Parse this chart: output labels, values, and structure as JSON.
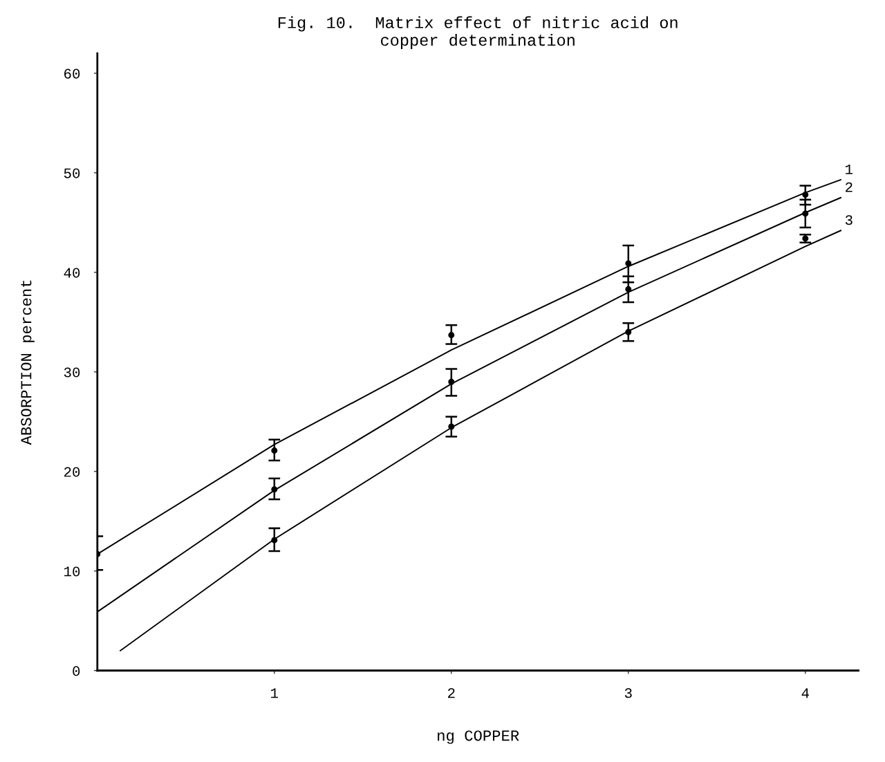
{
  "chart_data": {
    "type": "line",
    "title": "Fig. 10.  Matrix effect of nitric acid on\ncopper determination",
    "xlabel": "ng COPPER",
    "ylabel": "ABSORPTION percent",
    "xlim": [
      0,
      4.3
    ],
    "ylim": [
      0,
      62
    ],
    "xticks": [
      1,
      2,
      3,
      4
    ],
    "yticks": [
      0,
      10,
      20,
      30,
      40,
      50,
      60
    ],
    "grid": false,
    "legend": "right",
    "line_style": "solid",
    "series": [
      {
        "name": "1",
        "marker": "none",
        "color": "#000000",
        "x": [
          0,
          1,
          2,
          3,
          4,
          4.2
        ],
        "values": [
          11.7,
          22.7,
          32.2,
          40.6,
          48.0,
          49.3
        ]
      },
      {
        "name": "2",
        "marker": "none",
        "color": "#000000",
        "x": [
          0,
          1,
          2,
          3,
          4,
          4.2
        ],
        "values": [
          5.9,
          18.1,
          28.8,
          38.0,
          46.0,
          47.5
        ]
      },
      {
        "name": "3",
        "marker": "none",
        "color": "#000000",
        "x": [
          0.13,
          1,
          2,
          3,
          4,
          4.2
        ],
        "values": [
          2.0,
          13.2,
          24.4,
          34.1,
          42.6,
          44.2
        ]
      },
      {
        "type": "scatter",
        "marker": "circle",
        "color": "#000000",
        "x": [
          0,
          1,
          2,
          3,
          4
        ],
        "values": [
          11.7,
          22.1,
          33.7,
          40.9,
          47.8
        ],
        "errors": [
          [
            10.1,
            13.5
          ],
          [
            21.1,
            23.2
          ],
          [
            32.8,
            34.7
          ],
          [
            39.0,
            42.7
          ],
          [
            46.8,
            48.7
          ]
        ]
      },
      {
        "type": "scatter",
        "marker": "circle",
        "color": "#000000",
        "x": [
          1,
          2,
          3,
          4
        ],
        "values": [
          18.2,
          29.0,
          38.3,
          45.9
        ],
        "errors": [
          [
            17.2,
            19.3
          ],
          [
            27.6,
            30.3
          ],
          [
            37.0,
            39.6
          ],
          [
            44.5,
            47.3
          ]
        ]
      },
      {
        "type": "scatter",
        "marker": "circle",
        "color": "#000000",
        "x": [
          1,
          2,
          3,
          4
        ],
        "values": [
          13.1,
          24.5,
          34.0,
          43.4
        ],
        "errors": [
          [
            12.0,
            14.3
          ],
          [
            23.5,
            25.5
          ],
          [
            33.1,
            34.9
          ],
          [
            43.0,
            43.8
          ]
        ]
      }
    ]
  }
}
